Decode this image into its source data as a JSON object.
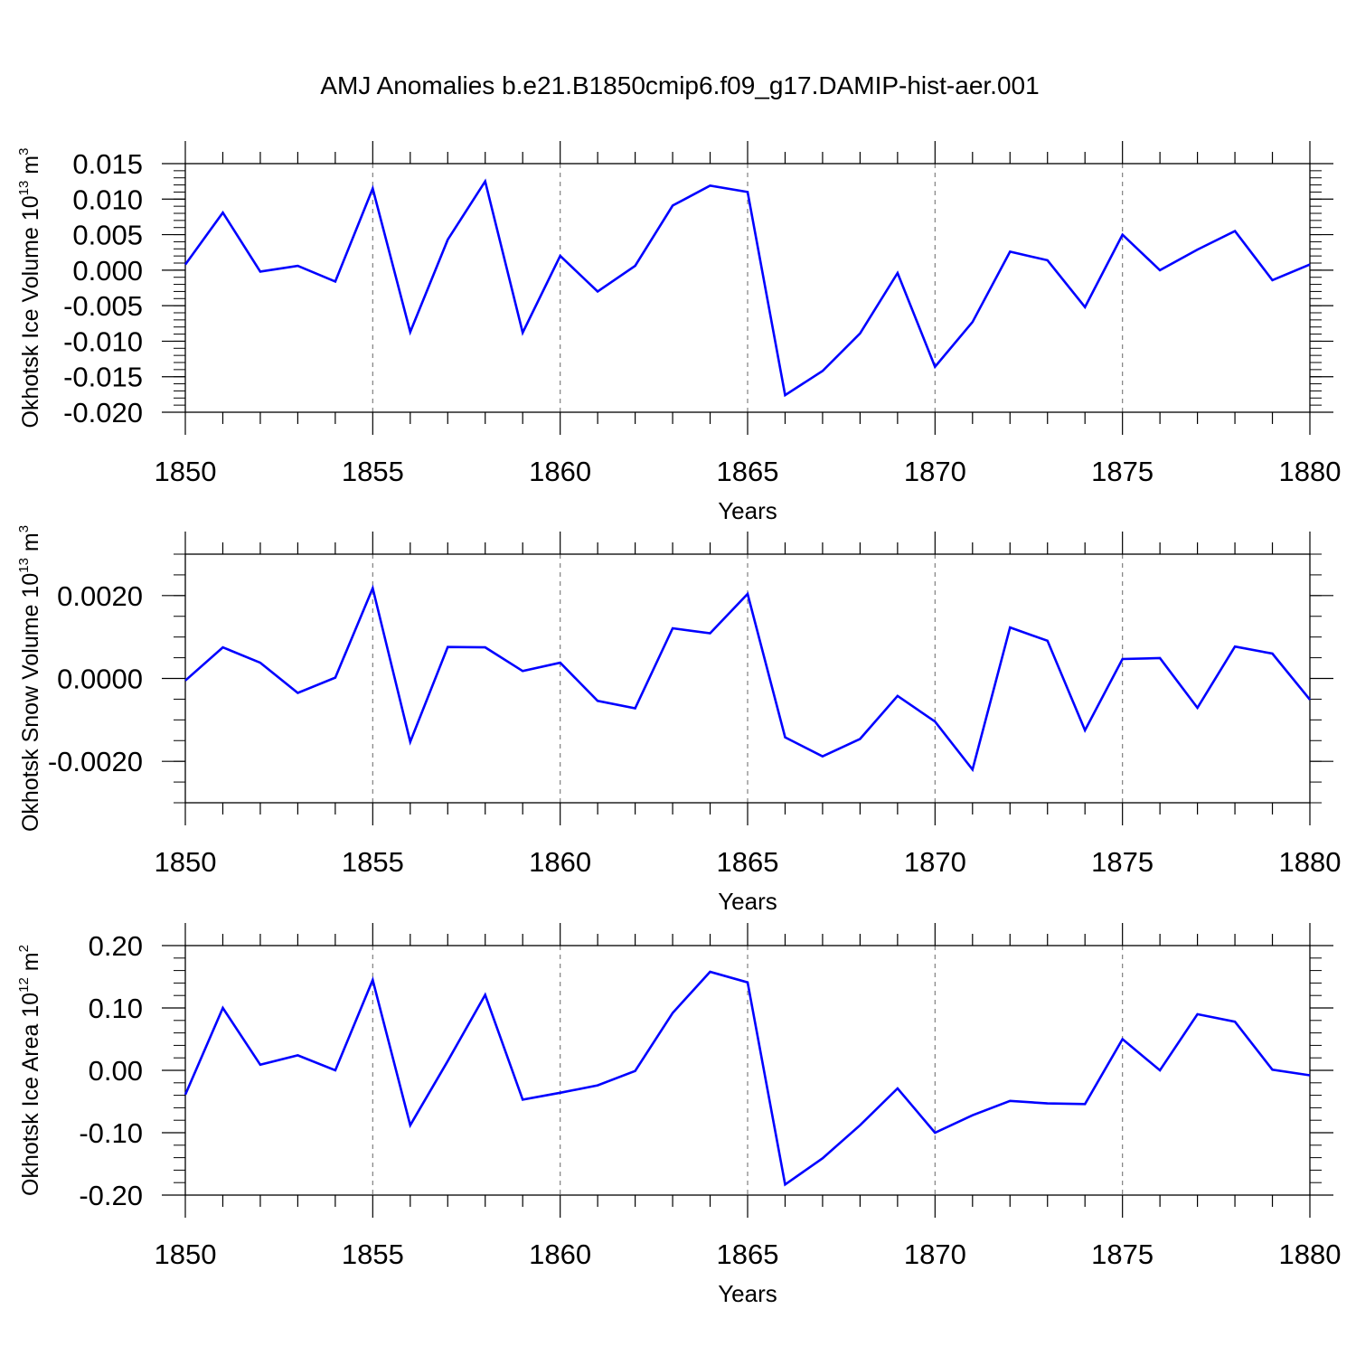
{
  "colors": {
    "line": "#0000ff",
    "axis": "#000000",
    "grid": "#808080",
    "background": "#ffffff"
  },
  "chart_data": {
    "title": "AMJ Anomalies b.e21.B1850cmip6.f09_g17.DAMIP-hist-aer.001",
    "panels": [
      {
        "type": "line",
        "ylabel": {
          "text": "Okhotsk Ice Volume 10",
          "exp": "13",
          "unit": " m",
          "unit_exp": "3"
        },
        "xlabel": "Years",
        "x": [
          1850,
          1851,
          1852,
          1853,
          1854,
          1855,
          1856,
          1857,
          1858,
          1859,
          1860,
          1861,
          1862,
          1863,
          1864,
          1865,
          1866,
          1867,
          1868,
          1869,
          1870,
          1871,
          1872,
          1873,
          1874,
          1875,
          1876,
          1877,
          1878,
          1879,
          1880
        ],
        "values": [
          0.0008,
          0.0081,
          -0.0002,
          0.0006,
          -0.0016,
          0.0115,
          -0.0087,
          0.0043,
          0.0125,
          -0.0088,
          0.002,
          -0.003,
          0.0006,
          0.0091,
          0.0119,
          0.011,
          -0.0176,
          -0.0142,
          -0.0089,
          -0.0004,
          -0.0136,
          -0.0073,
          0.0026,
          0.0014,
          -0.0052,
          0.005,
          0.0,
          0.0029,
          0.0055,
          -0.0014,
          0.0008
        ],
        "xlim": [
          1850,
          1880
        ],
        "ylim": [
          -0.02,
          0.015
        ],
        "yticks": [
          0.015,
          0.01,
          0.005,
          0.0,
          -0.005,
          -0.01,
          -0.015,
          -0.02
        ],
        "ytick_labels": [
          "0.015",
          "0.010",
          "0.005",
          "0.000",
          "-0.005",
          "-0.010",
          "-0.015",
          "-0.020"
        ],
        "yminor_step": 0.001,
        "xticks": [
          1850,
          1855,
          1860,
          1865,
          1870,
          1875,
          1880
        ],
        "xtick_labels": [
          "1850",
          "1855",
          "1860",
          "1865",
          "1870",
          "1875",
          "1880"
        ],
        "grid": "vertical-dashed"
      },
      {
        "type": "line",
        "ylabel": {
          "text": "Okhotsk Snow Volume 10",
          "exp": "13",
          "unit": " m",
          "unit_exp": "3"
        },
        "xlabel": "Years",
        "x": [
          1850,
          1851,
          1852,
          1853,
          1854,
          1855,
          1856,
          1857,
          1858,
          1859,
          1860,
          1861,
          1862,
          1863,
          1864,
          1865,
          1866,
          1867,
          1868,
          1869,
          1870,
          1871,
          1872,
          1873,
          1874,
          1875,
          1876,
          1877,
          1878,
          1879,
          1880
        ],
        "values": [
          -5e-05,
          0.00075,
          0.00038,
          -0.00035,
          2e-05,
          0.00218,
          -0.00153,
          0.00076,
          0.00075,
          0.00018,
          0.00038,
          -0.00054,
          -0.00072,
          0.00121,
          0.00109,
          0.00204,
          -0.00142,
          -0.00188,
          -0.00146,
          -0.00042,
          -0.00104,
          -0.0022,
          0.00123,
          0.00091,
          -0.00125,
          0.00047,
          0.00049,
          -0.00071,
          0.00077,
          0.0006,
          -0.00051
        ],
        "xlim": [
          1850,
          1880
        ],
        "ylim": [
          -0.003,
          0.003
        ],
        "yticks": [
          0.002,
          0.0,
          -0.002
        ],
        "ytick_labels": [
          "0.0020",
          "0.0000",
          "-0.0020"
        ],
        "yminor_step": 0.0005,
        "xticks": [
          1850,
          1855,
          1860,
          1865,
          1870,
          1875,
          1880
        ],
        "xtick_labels": [
          "1850",
          "1855",
          "1860",
          "1865",
          "1870",
          "1875",
          "1880"
        ],
        "grid": "vertical-dashed"
      },
      {
        "type": "line",
        "ylabel": {
          "text": "Okhotsk Ice Area 10",
          "exp": "12",
          "unit": " m",
          "unit_exp": "2"
        },
        "xlabel": "Years",
        "x": [
          1850,
          1851,
          1852,
          1853,
          1854,
          1855,
          1856,
          1857,
          1858,
          1859,
          1860,
          1861,
          1862,
          1863,
          1864,
          1865,
          1866,
          1867,
          1868,
          1869,
          1870,
          1871,
          1872,
          1873,
          1874,
          1875,
          1876,
          1877,
          1878,
          1879,
          1880
        ],
        "values": [
          -0.039,
          0.1,
          0.009,
          0.024,
          0.0,
          0.145,
          -0.088,
          0.015,
          0.121,
          -0.047,
          -0.036,
          -0.024,
          -0.001,
          0.092,
          0.158,
          0.141,
          -0.183,
          -0.141,
          -0.088,
          -0.029,
          -0.1,
          -0.072,
          -0.049,
          -0.053,
          -0.054,
          0.05,
          0.0,
          0.09,
          0.078,
          0.001,
          -0.008
        ],
        "xlim": [
          1850,
          1880
        ],
        "ylim": [
          -0.2,
          0.2
        ],
        "yticks": [
          0.2,
          0.1,
          0.0,
          -0.1,
          -0.2
        ],
        "ytick_labels": [
          "0.20",
          "0.10",
          "0.00",
          "-0.10",
          "-0.20"
        ],
        "yminor_step": 0.02,
        "xticks": [
          1850,
          1855,
          1860,
          1865,
          1870,
          1875,
          1880
        ],
        "xtick_labels": [
          "1850",
          "1855",
          "1860",
          "1865",
          "1870",
          "1875",
          "1880"
        ],
        "grid": "vertical-dashed"
      }
    ]
  }
}
